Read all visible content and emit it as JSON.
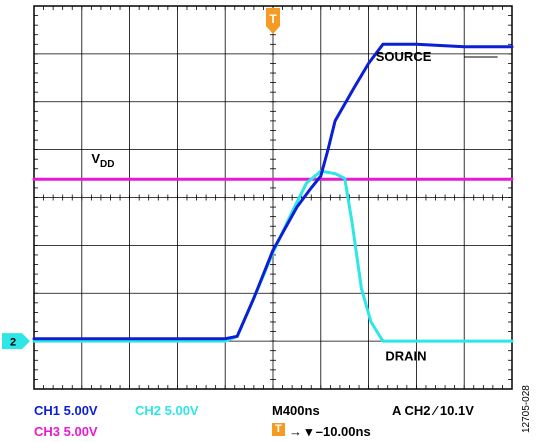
{
  "chart_data": {
    "type": "line",
    "title": "",
    "xlabel": "",
    "ylabel": "",
    "grid": true,
    "divisions": {
      "x": 10,
      "y": 8
    },
    "xlim": [
      0,
      10
    ],
    "ylim": [
      0,
      8
    ],
    "series": [
      {
        "name": "SOURCE",
        "channel": "CH1",
        "color": "#0b1fd6",
        "x": [
          0,
          1,
          2,
          3,
          4,
          4.25,
          4.6,
          5.0,
          5.5,
          5.8,
          6.0,
          6.15,
          6.3,
          6.7,
          7.0,
          7.3,
          8.0,
          9.0,
          10.0
        ],
        "y": [
          1.05,
          1.05,
          1.05,
          1.05,
          1.05,
          1.1,
          1.9,
          2.9,
          3.8,
          4.2,
          4.45,
          5.0,
          5.6,
          6.3,
          6.8,
          7.2,
          7.2,
          7.15,
          7.15
        ]
      },
      {
        "name": "DRAIN",
        "channel": "CH2",
        "color": "#2ee6e6",
        "x": [
          0,
          1,
          2,
          3,
          4,
          4.25,
          4.6,
          5.0,
          5.4,
          5.7,
          6.0,
          6.3,
          6.5,
          6.65,
          6.85,
          7.05,
          7.3,
          8.0,
          9.0,
          10.0
        ],
        "y": [
          1.0,
          1.0,
          1.0,
          1.0,
          1.0,
          1.1,
          1.9,
          2.85,
          3.7,
          4.3,
          4.55,
          4.5,
          4.4,
          3.5,
          2.1,
          1.4,
          1.0,
          1.0,
          1.0,
          1.0
        ]
      },
      {
        "name": "VDD",
        "channel": "CH3",
        "color": "#e81ad0",
        "x": [
          0,
          10
        ],
        "y": [
          4.38,
          4.38
        ]
      }
    ],
    "annotations": {
      "source_label": "SOURCE",
      "drain_label": "DRAIN",
      "vdd_main": "V",
      "vdd_sub": "DD"
    },
    "trigger_position_x": 5.0,
    "ch2_ground_level": 1.0,
    "ch2_marker_label": "2",
    "trigger_marker_label": "T"
  },
  "readout": {
    "ch1": "CH1  5.00V",
    "ch2": "CH2  5.00V",
    "ch3": "CH3  5.00V",
    "timebase": "M400ns",
    "trigger_setting": "A  CH2  ∕  10.1V",
    "trigger_icon": "T",
    "trigger_offset": "→ ▾ –10.00ns",
    "figure_code": "12705-028"
  },
  "colors": {
    "ch1": "#0b1fd6",
    "ch2": "#2ee6e6",
    "ch3": "#e81ad0",
    "trigger": "#f59a23",
    "grid": "#000000"
  }
}
